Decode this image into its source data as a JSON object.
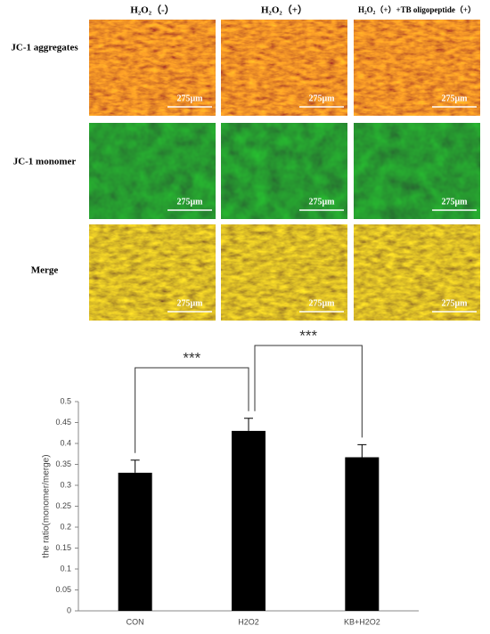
{
  "micrographs": {
    "columns": [
      "H₂O₂（-）",
      "H₂O₂（+）",
      "H₂O₂（+）+TB oligopeptide（+）"
    ],
    "rows": [
      "JC-1 aggregates",
      "JC-1 monomer",
      "Merge"
    ],
    "scale_bar": "275μm"
  },
  "chart_data": {
    "type": "bar",
    "y_label": "the ratio(monomer/merge)",
    "categories": [
      "CON",
      "H2O2",
      "KB+H2O2"
    ],
    "values": [
      0.33,
      0.43,
      0.367
    ],
    "errors": [
      0.03,
      0.03,
      0.03
    ],
    "color": "#000000",
    "ylim": [
      0,
      0.5
    ],
    "yticks": [
      0,
      0.05,
      0.1,
      0.15,
      0.2,
      0.25,
      0.3,
      0.35,
      0.4,
      0.45,
      0.5
    ],
    "significance": [
      {
        "from": 0,
        "to": 1,
        "label": "***"
      },
      {
        "from": 1,
        "to": 2,
        "label": "***"
      }
    ]
  }
}
